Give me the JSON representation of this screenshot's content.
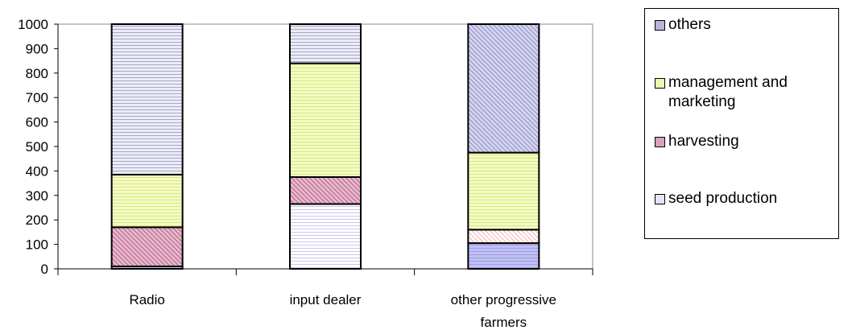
{
  "chart_data": {
    "type": "bar",
    "stacked": true,
    "categories": [
      "Radio",
      "input dealer",
      "other progressive farmers"
    ],
    "category_lines": [
      [
        "Radio"
      ],
      [
        "input dealer"
      ],
      [
        "other progressive",
        "farmers"
      ]
    ],
    "series": [
      {
        "name": "seed production",
        "values": [
          10,
          265,
          105
        ],
        "color": "#dcdcf5",
        "color_alt": "#dcdcf5"
      },
      {
        "name": "harvesting",
        "values": [
          160,
          110,
          55
        ],
        "color": "#d9a0bd",
        "color_alt": "#ffe6e6"
      },
      {
        "name": "management and marketing",
        "values": [
          215,
          465,
          315
        ],
        "color": "#eef7b2",
        "color_alt": "#dff09a"
      },
      {
        "name": "others",
        "values": [
          615,
          160,
          525
        ],
        "color": "#d6d6e8",
        "color_alt": "#b6b6dd"
      }
    ],
    "seed_alt_color_last": "#b4b4ec",
    "ylim": [
      0,
      1000
    ],
    "yticks": [
      0,
      100,
      200,
      300,
      400,
      500,
      600,
      700,
      800,
      900,
      1000
    ],
    "legend": {
      "placement": "right",
      "order": [
        "others",
        "management and marketing",
        "harvesting",
        "seed production"
      ]
    }
  }
}
